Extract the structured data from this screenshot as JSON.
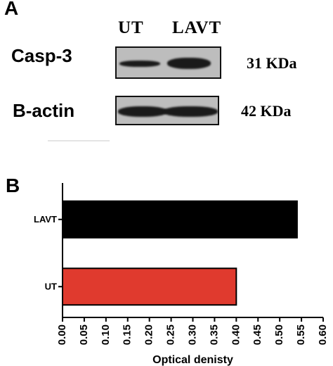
{
  "panel_a": {
    "letter": "A",
    "lanes": [
      "UT",
      "LAVT"
    ],
    "blots": [
      {
        "protein": "Casp-3",
        "mw": "31 KDa"
      },
      {
        "protein": "B-actin",
        "mw": "42 KDa"
      }
    ]
  },
  "panel_b": {
    "letter": "B"
  },
  "chart_data": {
    "type": "bar",
    "orientation": "horizontal",
    "categories": [
      "UT",
      "LAVT"
    ],
    "values": [
      0.4,
      0.54
    ],
    "colors": [
      "#e03a2e",
      "#000000"
    ],
    "title": "",
    "xlabel": "Optical denisty",
    "ylabel": "",
    "xlim": [
      0,
      0.6
    ],
    "xticks": [
      "0.00",
      "0.05",
      "0.10",
      "0.15",
      "0.20",
      "0.25",
      "0.30",
      "0.35",
      "0.40",
      "0.45",
      "0.50",
      "0.55",
      "0.60"
    ],
    "grid": false,
    "legend": "none"
  }
}
